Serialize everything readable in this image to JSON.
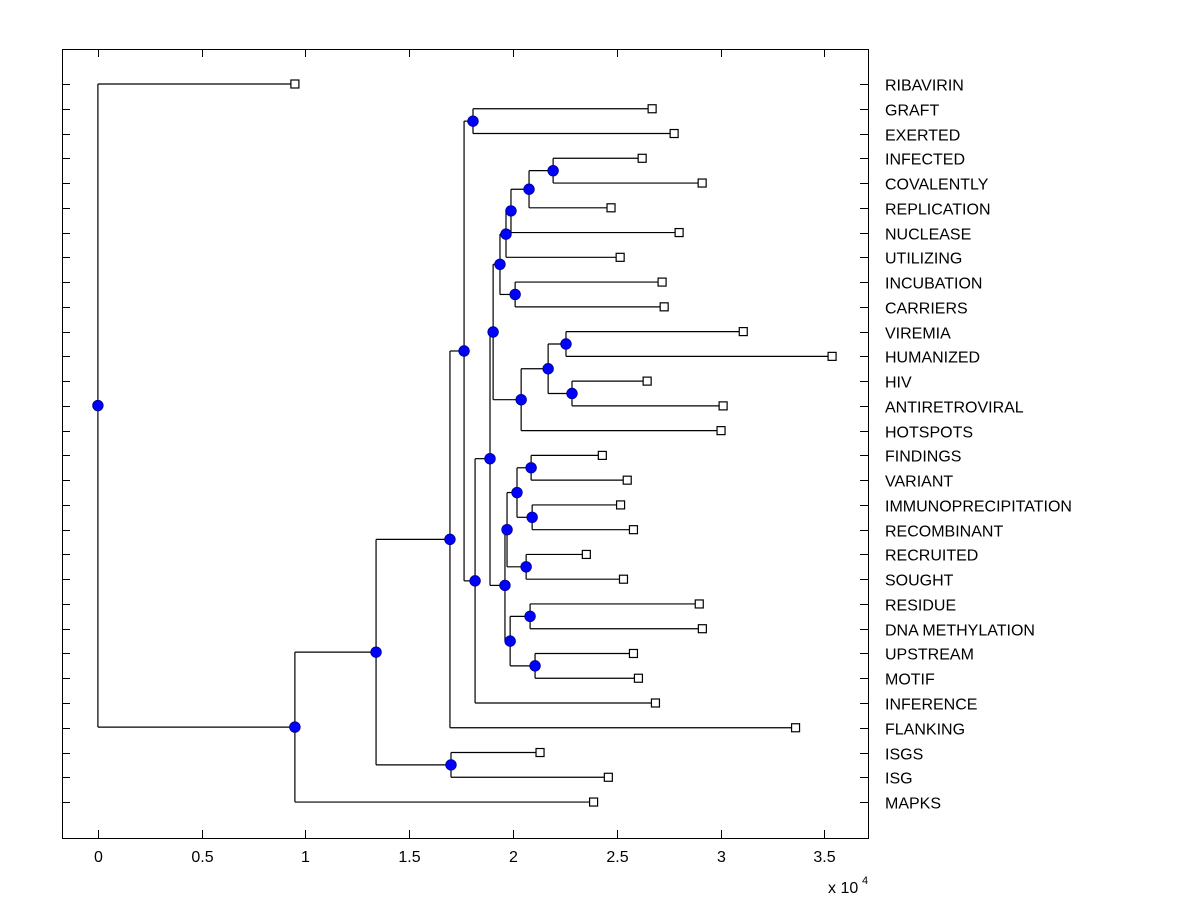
{
  "chart_data": {
    "type": "dendrogram",
    "title": "",
    "xlabel": "",
    "ylabel": "",
    "x_multiplier_label": "x 10",
    "x_multiplier_exponent": "4",
    "xlim": [
      -0.173,
      3.71
    ],
    "xticks": [
      0,
      0.5,
      1,
      1.5,
      2,
      2.5,
      3,
      3.5
    ],
    "xtick_labels": [
      "0",
      "0.5",
      "1",
      "1.5",
      "2",
      "2.5",
      "3",
      "3.5"
    ],
    "grid": false,
    "colors": {
      "line": "#000000",
      "internal_node_fill": "#0000ff",
      "internal_node_edge": "#00008b",
      "leaf_marker_fill": "#ffffff",
      "leaf_marker_edge": "#000000"
    },
    "leaves": [
      {
        "id": "RIBAVIRIN",
        "label": "RIBAVIRIN",
        "value": 0.949
      },
      {
        "id": "GRAFT",
        "label": "GRAFT",
        "value": 2.67
      },
      {
        "id": "EXERTED",
        "label": "EXERTED",
        "value": 2.776
      },
      {
        "id": "INFECTED",
        "label": "INFECTED",
        "value": 2.622
      },
      {
        "id": "COVALENTLY",
        "label": "COVALENTLY",
        "value": 2.911
      },
      {
        "id": "REPLICATION",
        "label": "REPLICATION",
        "value": 2.472
      },
      {
        "id": "NUCLEASE",
        "label": "NUCLEASE",
        "value": 2.8
      },
      {
        "id": "UTILIZING",
        "label": "UTILIZING",
        "value": 2.516
      },
      {
        "id": "INCUBATION",
        "label": "INCUBATION",
        "value": 2.718
      },
      {
        "id": "CARRIERS",
        "label": "CARRIERS",
        "value": 2.728
      },
      {
        "id": "VIREMIA",
        "label": "VIREMIA",
        "value": 3.109
      },
      {
        "id": "HUMANIZED",
        "label": "HUMANIZED",
        "value": 3.537
      },
      {
        "id": "HIV",
        "label": "HIV",
        "value": 2.646
      },
      {
        "id": "ANTIRETROVIRAL",
        "label": "ANTIRETROVIRAL",
        "value": 3.012
      },
      {
        "id": "HOTSPOTS",
        "label": "HOTSPOTS",
        "value": 3.002
      },
      {
        "id": "FINDINGS",
        "label": "FINDINGS",
        "value": 2.43
      },
      {
        "id": "VARIANT",
        "label": "VARIANT",
        "value": 2.55
      },
      {
        "id": "IMMUNOPRECIPITATION",
        "label": "IMMUNOPRECIPITATION",
        "value": 2.518
      },
      {
        "id": "RECOMBINANT",
        "label": "RECOMBINANT",
        "value": 2.58
      },
      {
        "id": "RECRUITED",
        "label": "RECRUITED",
        "value": 2.353
      },
      {
        "id": "SOUGHT",
        "label": "SOUGHT",
        "value": 2.532
      },
      {
        "id": "RESIDUE",
        "label": "RESIDUE",
        "value": 2.897
      },
      {
        "id": "DNA_METHYLATION",
        "label": "DNA METHYLATION",
        "value": 2.912
      },
      {
        "id": "UPSTREAM",
        "label": "UPSTREAM",
        "value": 2.58
      },
      {
        "id": "MOTIF",
        "label": "MOTIF",
        "value": 2.604
      },
      {
        "id": "INFERENCE",
        "label": "INFERENCE",
        "value": 2.686
      },
      {
        "id": "FLANKING",
        "label": "FLANKING",
        "value": 3.361
      },
      {
        "id": "ISGS",
        "label": "ISGS",
        "value": 2.13
      },
      {
        "id": "ISG",
        "label": "ISG",
        "value": 2.459
      },
      {
        "id": "MAPKS",
        "label": "MAPKS",
        "value": 2.388
      }
    ],
    "internal_nodes": [
      {
        "id": "n_root",
        "value": 0.0,
        "children": [
          "RIBAVIRIN",
          "n_295"
        ]
      },
      {
        "id": "n_295",
        "value": 0.949,
        "children": [
          "n_376",
          "MAPKS"
        ]
      },
      {
        "id": "n_376",
        "value": 1.34,
        "children": [
          "n_450",
          "n_isg"
        ]
      },
      {
        "id": "n_isg",
        "value": 1.701,
        "children": [
          "ISGS",
          "ISG"
        ]
      },
      {
        "id": "n_450",
        "value": 1.696,
        "children": [
          "n_464",
          "FLANKING"
        ]
      },
      {
        "id": "n_464",
        "value": 1.764,
        "children": [
          "n_graft",
          "n_475"
        ]
      },
      {
        "id": "n_graft",
        "value": 1.807,
        "children": [
          "GRAFT",
          "EXERTED"
        ]
      },
      {
        "id": "n_475",
        "value": 1.817,
        "children": [
          "n_490",
          "INFERENCE"
        ]
      },
      {
        "id": "n_490",
        "value": 1.889,
        "children": [
          "n_493",
          "n_505"
        ]
      },
      {
        "id": "n_493",
        "value": 1.904,
        "children": [
          "n_500",
          "n_521"
        ]
      },
      {
        "id": "n_500",
        "value": 1.937,
        "children": [
          "n_506",
          "n_inc"
        ]
      },
      {
        "id": "n_506",
        "value": 1.966,
        "children": [
          "n_511",
          "UTILIZING"
        ]
      },
      {
        "id": "n_511",
        "value": 1.99,
        "children": [
          "n_529",
          "NUCLEASE"
        ]
      },
      {
        "id": "n_529",
        "value": 2.077,
        "children": [
          "n_inf",
          "REPLICATION"
        ]
      },
      {
        "id": "n_inf",
        "value": 2.193,
        "children": [
          "INFECTED",
          "COVALENTLY"
        ]
      },
      {
        "id": "n_inc",
        "value": 2.01,
        "children": [
          "INCUBATION",
          "CARRIERS"
        ]
      },
      {
        "id": "n_521",
        "value": 2.039,
        "children": [
          "n_548",
          "HOTSPOTS"
        ]
      },
      {
        "id": "n_548",
        "value": 2.169,
        "children": [
          "n_vir",
          "n_hiv"
        ]
      },
      {
        "id": "n_vir",
        "value": 2.255,
        "children": [
          "VIREMIA",
          "HUMANIZED"
        ]
      },
      {
        "id": "n_hiv",
        "value": 2.284,
        "children": [
          "HIV",
          "ANTIRETROVIRAL"
        ]
      },
      {
        "id": "n_505",
        "value": 1.961,
        "children": [
          "n_507",
          "n_510"
        ]
      },
      {
        "id": "n_507",
        "value": 1.971,
        "children": [
          "n_517",
          "n_rec"
        ]
      },
      {
        "id": "n_517",
        "value": 2.019,
        "children": [
          "n_find",
          "n_imm"
        ]
      },
      {
        "id": "n_find",
        "value": 2.087,
        "children": [
          "FINDINGS",
          "VARIANT"
        ]
      },
      {
        "id": "n_imm",
        "value": 2.092,
        "children": [
          "IMMUNOPRECIPITATION",
          "RECOMBINANT"
        ]
      },
      {
        "id": "n_rec",
        "value": 2.063,
        "children": [
          "RECRUITED",
          "SOUGHT"
        ]
      },
      {
        "id": "n_510",
        "value": 1.986,
        "children": [
          "n_res",
          "n_up"
        ]
      },
      {
        "id": "n_res",
        "value": 2.082,
        "children": [
          "RESIDUE",
          "DNA_METHYLATION"
        ]
      },
      {
        "id": "n_up",
        "value": 2.106,
        "children": [
          "UPSTREAM",
          "MOTIF"
        ]
      }
    ]
  }
}
